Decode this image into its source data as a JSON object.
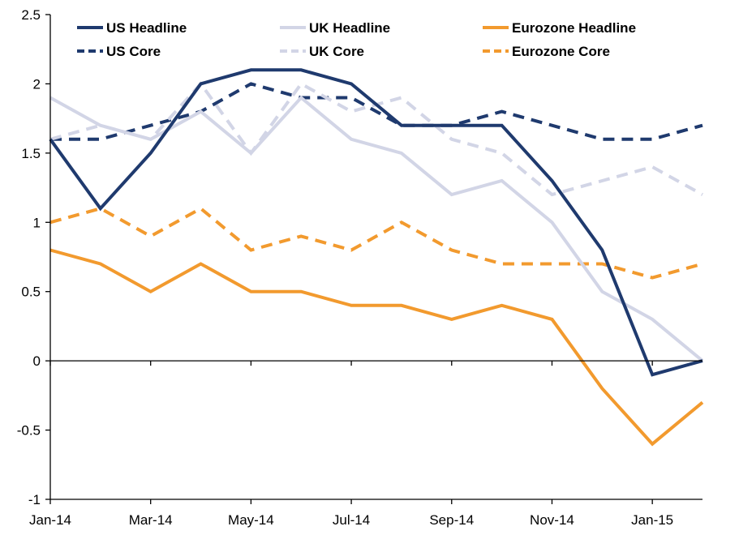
{
  "chart_data": {
    "type": "line",
    "title": "",
    "xlabel": "",
    "ylabel": "",
    "x": [
      "Jan-14",
      "Feb-14",
      "Mar-14",
      "Apr-14",
      "May-14",
      "Jun-14",
      "Jul-14",
      "Aug-14",
      "Sep-14",
      "Oct-14",
      "Nov-14",
      "Dec-14",
      "Jan-15",
      "Feb-15"
    ],
    "x_tick_labels": [
      "Jan-14",
      "Mar-14",
      "May-14",
      "Jul-14",
      "Sep-14",
      "Nov-14",
      "Jan-15"
    ],
    "ylim": [
      -1,
      2.5
    ],
    "y_ticks": [
      2.5,
      2,
      1.5,
      1,
      0.5,
      0,
      -0.5,
      -1
    ],
    "y_tick_labels": [
      "2.5",
      "2",
      "1.5",
      "1",
      "0.5",
      "0",
      "-0.5",
      "-1"
    ],
    "grid": false,
    "legend_position": "top",
    "series": [
      {
        "name": "US Headline",
        "color": "#1f3a6e",
        "dash": "solid",
        "values": [
          1.6,
          1.1,
          1.5,
          2.0,
          2.1,
          2.1,
          2.0,
          1.7,
          1.7,
          1.7,
          1.3,
          0.8,
          -0.1,
          0.0
        ]
      },
      {
        "name": "UK Headline",
        "color": "#d2d5e6",
        "dash": "solid",
        "values": [
          1.9,
          1.7,
          1.6,
          1.8,
          1.5,
          1.9,
          1.6,
          1.5,
          1.2,
          1.3,
          1.0,
          0.5,
          0.3,
          0.0
        ]
      },
      {
        "name": "Eurozone Headline",
        "color": "#f29a2e",
        "dash": "solid",
        "values": [
          0.8,
          0.7,
          0.5,
          0.7,
          0.5,
          0.5,
          0.4,
          0.4,
          0.3,
          0.4,
          0.3,
          -0.2,
          -0.6,
          -0.3
        ]
      },
      {
        "name": "US Core",
        "color": "#1f3a6e",
        "dash": "dashed",
        "values": [
          1.6,
          1.6,
          1.7,
          1.8,
          2.0,
          1.9,
          1.9,
          1.7,
          1.7,
          1.8,
          1.7,
          1.6,
          1.6,
          1.7
        ]
      },
      {
        "name": "UK Core",
        "color": "#d2d5e6",
        "dash": "dashed",
        "values": [
          1.6,
          1.7,
          1.6,
          2.0,
          1.5,
          2.0,
          1.8,
          1.9,
          1.6,
          1.5,
          1.2,
          1.3,
          1.4,
          1.2
        ]
      },
      {
        "name": "Eurozone Core",
        "color": "#f29a2e",
        "dash": "dashed",
        "values": [
          1.0,
          1.1,
          0.9,
          1.1,
          0.8,
          0.9,
          0.8,
          1.0,
          0.8,
          0.7,
          0.7,
          0.7,
          0.6,
          0.7
        ]
      }
    ]
  }
}
